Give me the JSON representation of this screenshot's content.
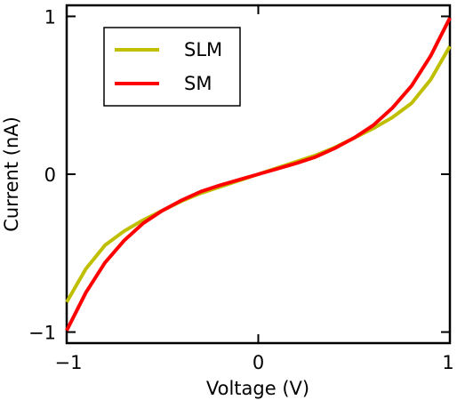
{
  "chart_data": {
    "type": "line",
    "xlabel": "Voltage (V)",
    "ylabel": "Current (nA)",
    "xlim": [
      -1,
      1
    ],
    "ylim": [
      -1.07,
      1.07
    ],
    "xticks": [
      -1,
      0,
      1
    ],
    "xtick_labels": [
      "−1",
      "0",
      "1"
    ],
    "yticks": [
      -1,
      0,
      1
    ],
    "ytick_labels": [
      "−1",
      "0",
      "1"
    ],
    "grid": false,
    "legend_position": "top-left",
    "x": [
      -1.0,
      -0.9,
      -0.8,
      -0.7,
      -0.6,
      -0.5,
      -0.4,
      -0.3,
      -0.2,
      -0.1,
      0.0,
      0.1,
      0.2,
      0.3,
      0.4,
      0.5,
      0.6,
      0.7,
      0.8,
      0.9,
      1.0
    ],
    "series": [
      {
        "name": "SLM",
        "color": "#bfbf00",
        "values": [
          -0.81,
          -0.6,
          -0.45,
          -0.36,
          -0.29,
          -0.23,
          -0.17,
          -0.12,
          -0.08,
          -0.04,
          0.0,
          0.04,
          0.08,
          0.12,
          0.17,
          0.23,
          0.29,
          0.36,
          0.45,
          0.6,
          0.81
        ]
      },
      {
        "name": "SM",
        "color": "#ff0000",
        "values": [
          -0.99,
          -0.75,
          -0.56,
          -0.42,
          -0.31,
          -0.23,
          -0.165,
          -0.11,
          -0.07,
          -0.035,
          0.0,
          0.035,
          0.07,
          0.11,
          0.165,
          0.23,
          0.31,
          0.42,
          0.56,
          0.75,
          0.99
        ]
      }
    ]
  }
}
